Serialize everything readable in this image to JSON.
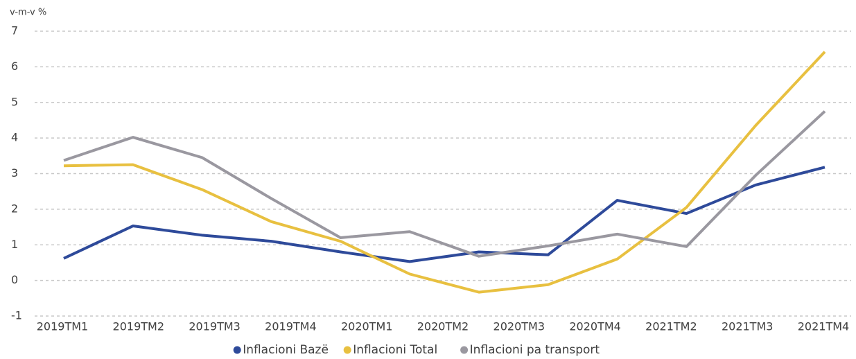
{
  "chart_data": {
    "type": "line",
    "y_axis_label": "v-m-v %",
    "categories": [
      "2019TM1",
      "2019TM2",
      "2019TM3",
      "2019TM4",
      "2020TM1",
      "2020TM2",
      "2020TM3",
      "2020TM4",
      null,
      "2021TM2",
      "2021TM3",
      "2021TM4"
    ],
    "series": [
      {
        "name": "Inflacioni Bazë",
        "color": "#2e4a9a",
        "values": [
          0.62,
          1.53,
          1.27,
          1.1,
          0.8,
          0.53,
          0.8,
          0.72,
          2.25,
          1.88,
          2.68,
          3.18
        ]
      },
      {
        "name": "Inflacioni Total",
        "color": "#e8c040",
        "values": [
          3.22,
          3.25,
          2.55,
          1.65,
          1.1,
          0.18,
          -0.33,
          -0.12,
          0.6,
          2.05,
          4.35,
          6.42
        ]
      },
      {
        "name": "Inflacioni pa transport",
        "color": "#9a98a0",
        "values": [
          3.37,
          4.02,
          3.45,
          2.3,
          1.2,
          1.37,
          0.68,
          0.97,
          1.3,
          0.95,
          2.95,
          4.75
        ]
      }
    ],
    "ylim": [
      -1,
      7
    ],
    "yticks": [
      -1,
      0,
      1,
      2,
      3,
      4,
      5,
      6,
      7
    ],
    "grid": true,
    "legend": "bottom"
  }
}
